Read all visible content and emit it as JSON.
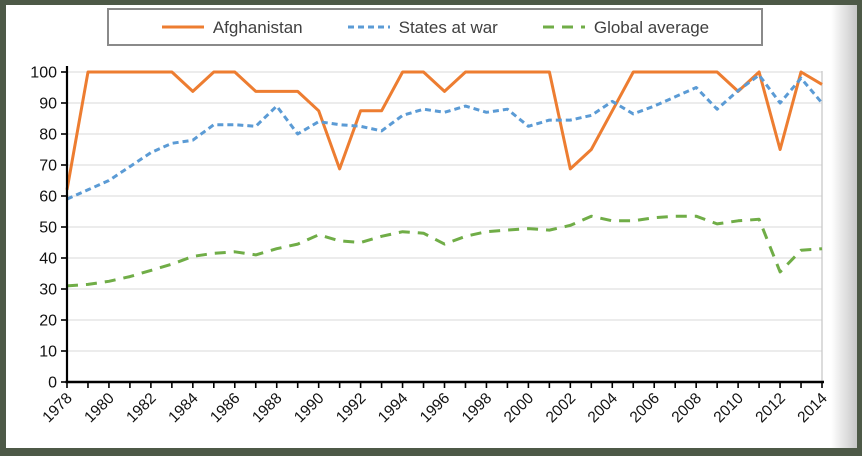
{
  "frame": {
    "background_color": "#4d5947",
    "panel_color": "#ffffff"
  },
  "legend": {
    "items": [
      {
        "label": "Afghanistan",
        "color": "#ED7D31",
        "line_style": "solid"
      },
      {
        "label": "States at war",
        "color": "#5B9BD5",
        "line_style": "short-dash"
      },
      {
        "label": "Global average",
        "color": "#70AD47",
        "line_style": "long-dash"
      }
    ]
  },
  "chart_data": {
    "type": "line",
    "title": "",
    "xlabel": "",
    "ylabel": "",
    "x": [
      1978,
      1979,
      1980,
      1981,
      1982,
      1983,
      1984,
      1985,
      1986,
      1987,
      1988,
      1989,
      1990,
      1991,
      1992,
      1993,
      1994,
      1995,
      1996,
      1997,
      1998,
      1999,
      2000,
      2001,
      2002,
      2003,
      2004,
      2005,
      2006,
      2007,
      2008,
      2009,
      2010,
      2011,
      2012,
      2013,
      2014
    ],
    "series": [
      {
        "name": "Afghanistan",
        "color": "#ED7D31",
        "style": "solid",
        "values": [
          62,
          100,
          100,
          100,
          100,
          100,
          93.75,
          100,
          100,
          93.75,
          93.75,
          93.75,
          87.5,
          68.75,
          87.5,
          87.5,
          100,
          100,
          93.75,
          100,
          100,
          100,
          100,
          100,
          68.75,
          75,
          87.5,
          100,
          100,
          100,
          100,
          100,
          93.75,
          100,
          75,
          100,
          96
        ]
      },
      {
        "name": "States at war",
        "color": "#5B9BD5",
        "style": "short-dash",
        "values": [
          59,
          62,
          65,
          69.5,
          74,
          77,
          78,
          83,
          83,
          82.5,
          89,
          80,
          84,
          83,
          82.5,
          81,
          86,
          88,
          87,
          89,
          87,
          88,
          82.5,
          84.5,
          84.5,
          86,
          90.5,
          86.5,
          89,
          92,
          95,
          88,
          94,
          99,
          90,
          98,
          90
        ]
      },
      {
        "name": "Global average",
        "color": "#70AD47",
        "style": "long-dash",
        "values": [
          31,
          31.5,
          32.5,
          34,
          36,
          38,
          40.5,
          41.5,
          42,
          41,
          43,
          44.5,
          47.5,
          45.5,
          45,
          47,
          48.5,
          48,
          44.5,
          47,
          48.5,
          49,
          49.5,
          49,
          50.5,
          53.5,
          52,
          52,
          53,
          53.5,
          53.5,
          51,
          52,
          52.5,
          35.5,
          42.5,
          43
        ]
      }
    ],
    "ylim": [
      0,
      100
    ],
    "ytick_step": 10,
    "yticks": [
      0,
      10,
      20,
      30,
      40,
      50,
      60,
      70,
      80,
      90,
      100
    ],
    "xtick_label_step": 2,
    "grid": "horizontal",
    "gridline_color": "#d9d9d9",
    "plot_right_border_color": "#c9c9c9",
    "axis_color": "#000000",
    "legend_position": "top-center"
  }
}
